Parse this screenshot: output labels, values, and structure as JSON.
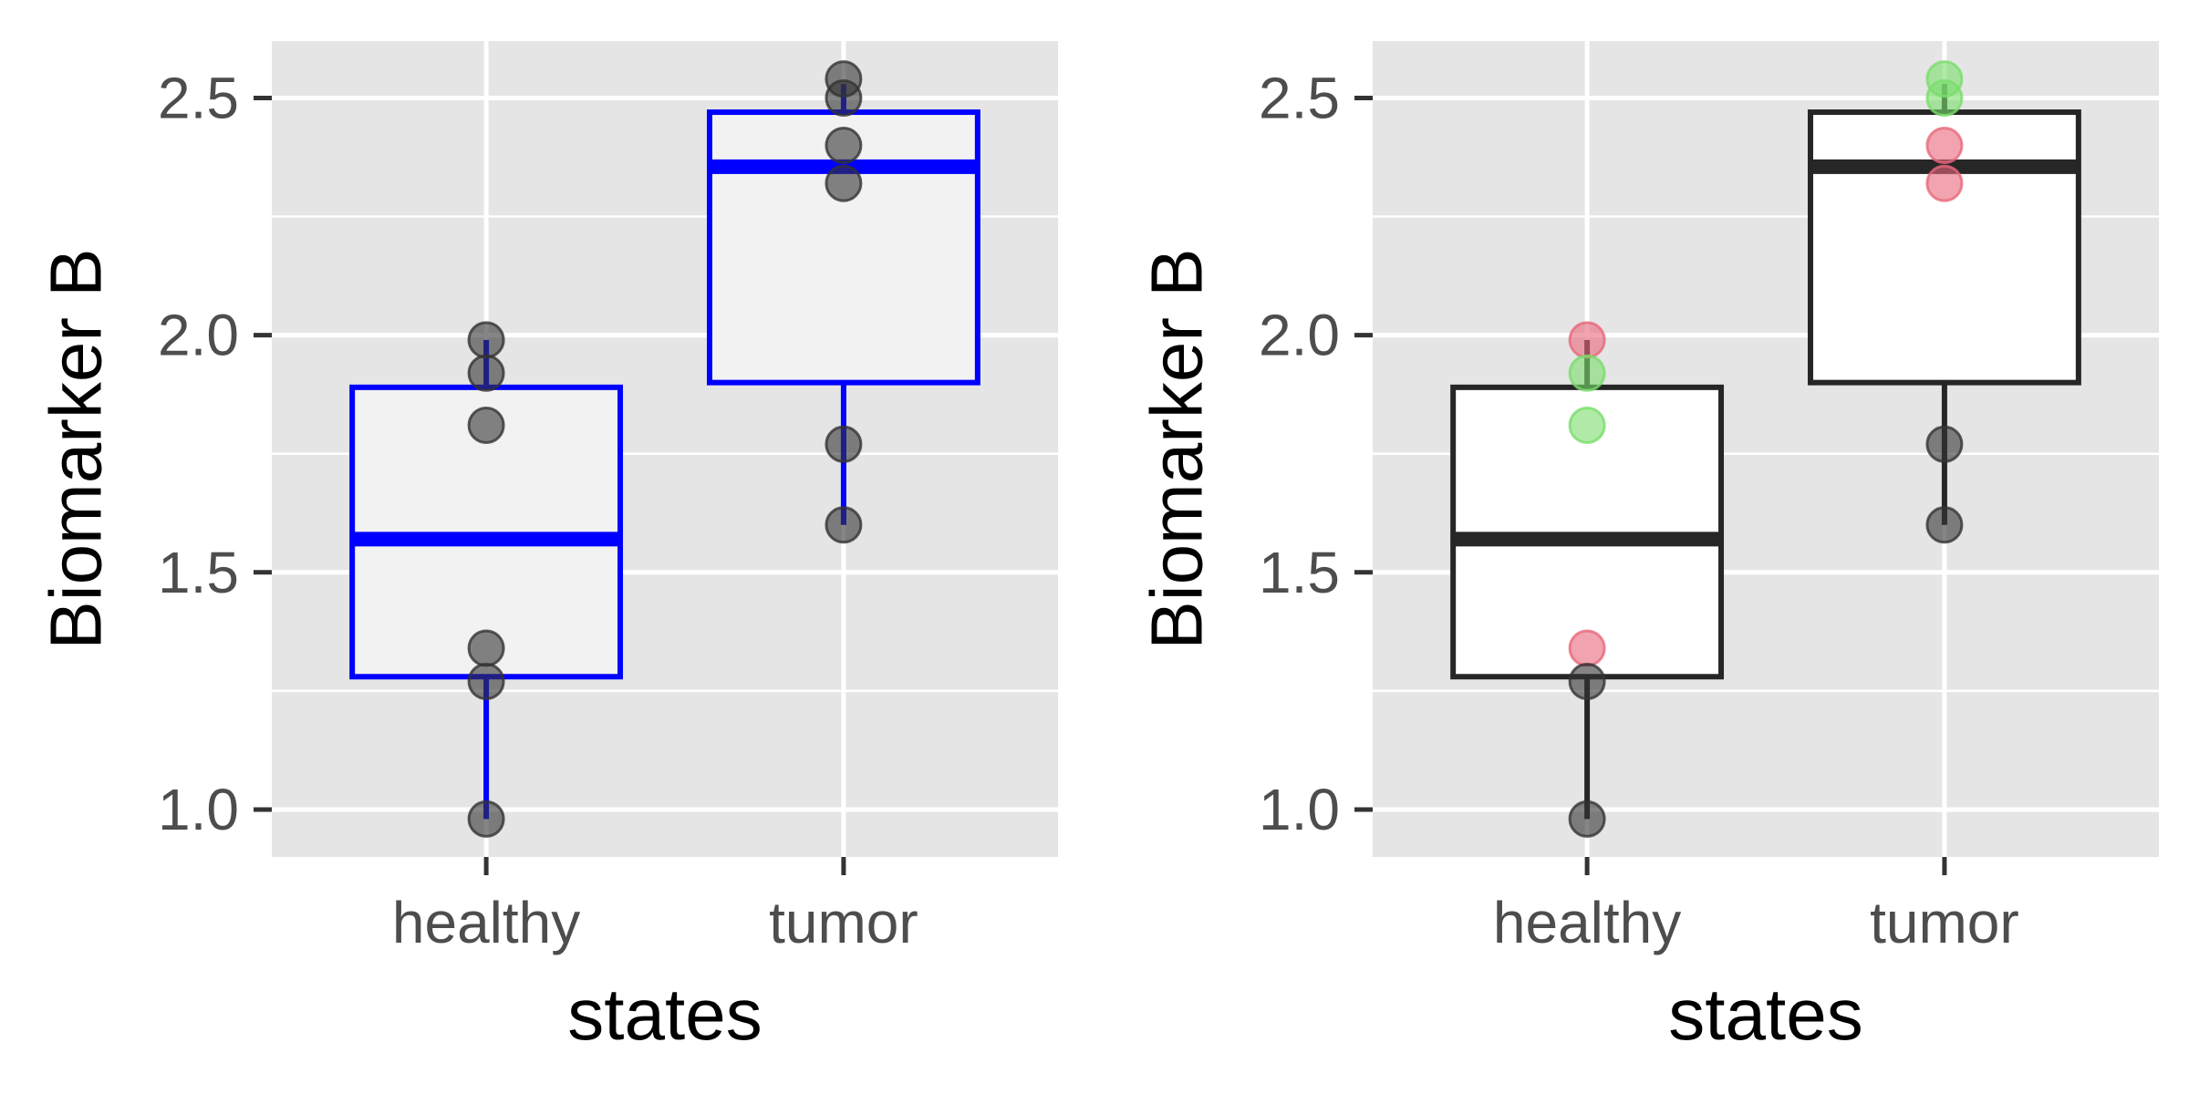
{
  "chart_data": [
    {
      "type": "box",
      "panel": "left",
      "xlabel": "states",
      "ylabel": "Biomarker B",
      "categories": [
        "healthy",
        "tumor"
      ],
      "ylim": [
        0.9,
        2.62
      ],
      "yticks": [
        1.0,
        1.5,
        2.0,
        2.5
      ],
      "ytick_labels": [
        "1.0",
        "1.5",
        "2.0",
        "2.5"
      ],
      "grid": true,
      "background": "#e5e5e5",
      "box_style": {
        "stroke": "#0000ff",
        "fill": "#f2f2f2"
      },
      "boxes": [
        {
          "category": "healthy",
          "q1": 1.28,
          "median": 1.57,
          "q3": 1.89,
          "whisker_low": 0.98,
          "whisker_high": 1.99
        },
        {
          "category": "tumor",
          "q1": 1.9,
          "median": 2.355,
          "q3": 2.47,
          "whisker_low": 1.6,
          "whisker_high": 2.53
        }
      ],
      "points": [
        {
          "category": "healthy",
          "y": 1.99,
          "color": "#333333"
        },
        {
          "category": "healthy",
          "y": 1.92,
          "color": "#333333"
        },
        {
          "category": "healthy",
          "y": 1.81,
          "color": "#333333"
        },
        {
          "category": "healthy",
          "y": 1.34,
          "color": "#333333"
        },
        {
          "category": "healthy",
          "y": 1.27,
          "color": "#333333"
        },
        {
          "category": "healthy",
          "y": 0.98,
          "color": "#333333"
        },
        {
          "category": "tumor",
          "y": 2.54,
          "color": "#333333"
        },
        {
          "category": "tumor",
          "y": 2.5,
          "color": "#333333"
        },
        {
          "category": "tumor",
          "y": 2.4,
          "color": "#333333"
        },
        {
          "category": "tumor",
          "y": 2.32,
          "color": "#333333"
        },
        {
          "category": "tumor",
          "y": 1.77,
          "color": "#333333"
        },
        {
          "category": "tumor",
          "y": 1.6,
          "color": "#333333"
        }
      ]
    },
    {
      "type": "box",
      "panel": "right",
      "xlabel": "states",
      "ylabel": "Biomarker B",
      "categories": [
        "healthy",
        "tumor"
      ],
      "ylim": [
        0.9,
        2.62
      ],
      "yticks": [
        1.0,
        1.5,
        2.0,
        2.5
      ],
      "ytick_labels": [
        "1.0",
        "1.5",
        "2.0",
        "2.5"
      ],
      "grid": true,
      "background": "#e5e5e5",
      "box_style": {
        "stroke": "#262626",
        "fill": "#ffffff"
      },
      "boxes": [
        {
          "category": "healthy",
          "q1": 1.28,
          "median": 1.57,
          "q3": 1.89,
          "whisker_low": 0.98,
          "whisker_high": 1.99
        },
        {
          "category": "tumor",
          "q1": 1.9,
          "median": 2.355,
          "q3": 2.47,
          "whisker_low": 1.6,
          "whisker_high": 2.53
        }
      ],
      "points": [
        {
          "category": "healthy",
          "y": 1.99,
          "color": "#e8687c"
        },
        {
          "category": "healthy",
          "y": 1.92,
          "color": "#79dd6c"
        },
        {
          "category": "healthy",
          "y": 1.81,
          "color": "#79dd6c"
        },
        {
          "category": "healthy",
          "y": 1.34,
          "color": "#e8687c"
        },
        {
          "category": "healthy",
          "y": 1.27,
          "color": "#333333"
        },
        {
          "category": "healthy",
          "y": 0.98,
          "color": "#333333"
        },
        {
          "category": "tumor",
          "y": 2.54,
          "color": "#79dd6c"
        },
        {
          "category": "tumor",
          "y": 2.5,
          "color": "#79dd6c"
        },
        {
          "category": "tumor",
          "y": 2.4,
          "color": "#e8687c"
        },
        {
          "category": "tumor",
          "y": 2.32,
          "color": "#e8687c"
        },
        {
          "category": "tumor",
          "y": 1.77,
          "color": "#333333"
        },
        {
          "category": "tumor",
          "y": 1.6,
          "color": "#333333"
        }
      ]
    }
  ]
}
